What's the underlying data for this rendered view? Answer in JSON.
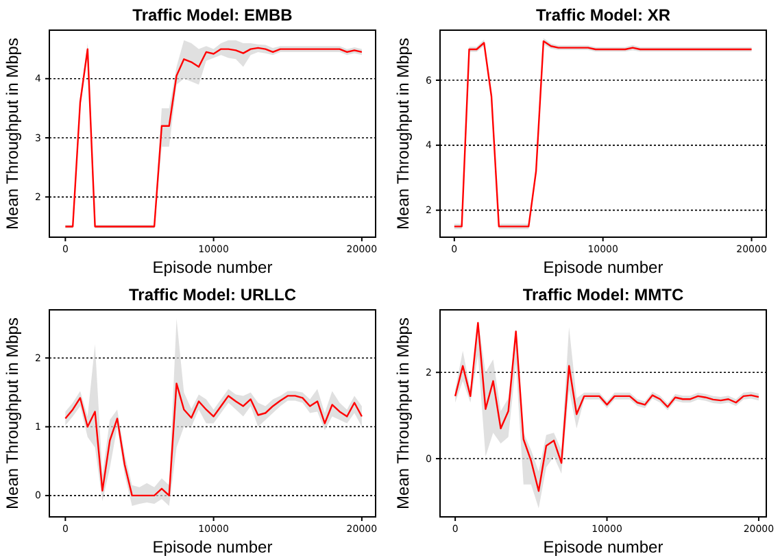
{
  "chart_data": [
    {
      "type": "line",
      "title": "Traffic Model: EMBB",
      "xlabel": "Episode number",
      "ylabel": "Mean Throughput in Mbps",
      "x": [
        0,
        500,
        1000,
        1500,
        2000,
        2500,
        3000,
        3500,
        4000,
        4500,
        5000,
        5500,
        6000,
        6500,
        7000,
        7500,
        8000,
        8500,
        9000,
        9500,
        10000,
        10500,
        11000,
        11500,
        12000,
        12500,
        13000,
        13500,
        14000,
        14500,
        15000,
        15500,
        16000,
        16500,
        17000,
        17500,
        18000,
        18500,
        19000,
        19500,
        20000
      ],
      "series": [
        {
          "color": "#ff0000",
          "values": [
            1.5,
            1.5,
            3.6,
            4.5,
            1.5,
            1.5,
            1.5,
            1.5,
            1.5,
            1.5,
            1.5,
            1.5,
            1.5,
            3.2,
            3.2,
            4.05,
            4.33,
            4.28,
            4.2,
            4.45,
            4.42,
            4.5,
            4.5,
            4.48,
            4.43,
            4.5,
            4.52,
            4.5,
            4.45,
            4.5,
            4.5,
            4.5,
            4.5,
            4.5,
            4.5,
            4.5,
            4.5,
            4.5,
            4.45,
            4.48,
            4.45
          ],
          "lower": [
            1.47,
            1.47,
            3.5,
            4.4,
            1.47,
            1.47,
            1.47,
            1.47,
            1.47,
            1.47,
            1.47,
            1.47,
            1.47,
            2.85,
            2.85,
            3.9,
            4.0,
            3.95,
            3.9,
            4.3,
            4.35,
            4.4,
            4.35,
            4.33,
            4.2,
            4.4,
            4.45,
            4.43,
            4.4,
            4.45,
            4.45,
            4.45,
            4.45,
            4.45,
            4.45,
            4.45,
            4.45,
            4.45,
            4.4,
            4.43,
            4.4
          ],
          "upper": [
            1.53,
            1.53,
            3.7,
            4.6,
            1.53,
            1.53,
            1.53,
            1.53,
            1.53,
            1.53,
            1.53,
            1.53,
            1.53,
            3.5,
            3.5,
            4.2,
            4.65,
            4.6,
            4.5,
            4.55,
            4.5,
            4.6,
            4.65,
            4.65,
            4.6,
            4.6,
            4.58,
            4.57,
            4.52,
            4.55,
            4.55,
            4.55,
            4.55,
            4.55,
            4.55,
            4.55,
            4.55,
            4.55,
            4.5,
            4.53,
            4.5
          ]
        }
      ],
      "xlim": [
        -1080,
        20930
      ],
      "ylim": [
        1.32,
        4.82
      ],
      "xticks": [
        0,
        10000,
        20000
      ],
      "yticks": [
        2,
        3,
        4
      ],
      "grid": "y"
    },
    {
      "type": "line",
      "title": "Traffic Model: XR",
      "xlabel": "Episode number",
      "ylabel": "Mean Throughput in Mbps",
      "x": [
        0,
        500,
        1000,
        1500,
        2000,
        2500,
        3000,
        3500,
        4000,
        4500,
        5000,
        5500,
        6000,
        6500,
        7000,
        7500,
        8000,
        8500,
        9000,
        9500,
        10000,
        10500,
        11000,
        11500,
        12000,
        12500,
        13000,
        13500,
        14000,
        14500,
        15000,
        15500,
        16000,
        16500,
        17000,
        17500,
        18000,
        18500,
        19000,
        19500,
        20000
      ],
      "series": [
        {
          "color": "#ff0000",
          "values": [
            1.5,
            1.5,
            6.95,
            6.95,
            7.15,
            5.5,
            1.5,
            1.5,
            1.5,
            1.5,
            1.5,
            3.2,
            7.2,
            7.05,
            7.0,
            7.0,
            7.0,
            7.0,
            7.0,
            6.95,
            6.95,
            6.95,
            6.95,
            6.95,
            7.0,
            6.95,
            6.95,
            6.95,
            6.95,
            6.95,
            6.95,
            6.95,
            6.95,
            6.95,
            6.95,
            6.95,
            6.95,
            6.95,
            6.95,
            6.95,
            6.95
          ],
          "lower": [
            1.42,
            1.42,
            6.87,
            6.87,
            7.05,
            5.4,
            1.42,
            1.42,
            1.42,
            1.42,
            1.42,
            3.1,
            7.1,
            6.97,
            6.93,
            6.93,
            6.93,
            6.93,
            6.93,
            6.88,
            6.88,
            6.88,
            6.88,
            6.88,
            6.92,
            6.88,
            6.88,
            6.88,
            6.88,
            6.88,
            6.88,
            6.88,
            6.88,
            6.88,
            6.88,
            6.88,
            6.88,
            6.88,
            6.88,
            6.88,
            6.88
          ],
          "upper": [
            1.58,
            1.58,
            7.03,
            7.03,
            7.25,
            5.6,
            1.58,
            1.58,
            1.58,
            1.58,
            1.58,
            3.3,
            7.3,
            7.13,
            7.07,
            7.07,
            7.07,
            7.07,
            7.07,
            7.02,
            7.02,
            7.02,
            7.02,
            7.02,
            7.08,
            7.02,
            7.02,
            7.02,
            7.02,
            7.02,
            7.02,
            7.02,
            7.02,
            7.02,
            7.02,
            7.02,
            7.02,
            7.02,
            7.02,
            7.02,
            7.02
          ]
        }
      ],
      "xlim": [
        -960,
        20990
      ],
      "ylim": [
        1.17,
        7.54
      ],
      "xticks": [
        0,
        10000,
        20000
      ],
      "yticks": [
        2,
        4,
        6
      ],
      "grid": "y"
    },
    {
      "type": "line",
      "title": "Traffic Model: URLLC",
      "xlabel": "Episode number",
      "ylabel": "Mean Throughput in Mbps",
      "x": [
        0,
        500,
        1000,
        1500,
        2000,
        2500,
        3000,
        3500,
        4000,
        4500,
        5000,
        5500,
        6000,
        6500,
        7000,
        7500,
        8000,
        8500,
        9000,
        9500,
        10000,
        10500,
        11000,
        11500,
        12000,
        12500,
        13000,
        13500,
        14000,
        14500,
        15000,
        15500,
        16000,
        16500,
        17000,
        17500,
        18000,
        18500,
        19000,
        19500,
        20000
      ],
      "series": [
        {
          "color": "#ff0000",
          "values": [
            1.12,
            1.25,
            1.42,
            1.0,
            1.22,
            0.07,
            0.8,
            1.12,
            0.45,
            0,
            0,
            0,
            0,
            0.1,
            0,
            1.63,
            1.25,
            1.13,
            1.37,
            1.25,
            1.15,
            1.3,
            1.45,
            1.37,
            1.3,
            1.4,
            1.17,
            1.2,
            1.3,
            1.38,
            1.45,
            1.45,
            1.42,
            1.3,
            1.37,
            1.05,
            1.32,
            1.22,
            1.15,
            1.35,
            1.15
          ],
          "lower": [
            1.02,
            1.15,
            1.3,
            0.85,
            0.7,
            -0.08,
            0.4,
            1.0,
            0.3,
            -0.15,
            -0.12,
            -0.1,
            -0.12,
            -0.05,
            -0.15,
            0.7,
            1.0,
            1.0,
            1.25,
            1.05,
            1.05,
            1.2,
            1.35,
            1.25,
            1.15,
            1.3,
            1.0,
            1.1,
            1.2,
            1.3,
            1.38,
            1.38,
            1.35,
            1.2,
            1.22,
            0.95,
            1.15,
            1.1,
            1.05,
            1.2,
            1.0
          ],
          "upper": [
            1.22,
            1.35,
            1.52,
            1.15,
            2.2,
            0.3,
            1.1,
            1.25,
            0.6,
            0.15,
            0.12,
            0.18,
            0.12,
            0.25,
            0.15,
            2.57,
            1.5,
            1.26,
            1.47,
            1.4,
            1.25,
            1.4,
            1.55,
            1.47,
            1.45,
            1.5,
            1.35,
            1.3,
            1.4,
            1.45,
            1.52,
            1.52,
            1.5,
            1.4,
            1.55,
            1.2,
            1.52,
            1.35,
            1.25,
            1.45,
            1.3
          ]
        }
      ],
      "xlim": [
        -1080,
        20930
      ],
      "ylim": [
        -0.31,
        2.7
      ],
      "xticks": [
        0,
        10000,
        20000
      ],
      "yticks": [
        0,
        1,
        2
      ],
      "grid": "y"
    },
    {
      "type": "line",
      "title": "Traffic Model: MMTC",
      "xlabel": "Episode number",
      "ylabel": "Mean Throughput in Mbps",
      "x": [
        0,
        500,
        1000,
        1500,
        2000,
        2500,
        3000,
        3500,
        4000,
        4500,
        5000,
        5500,
        6000,
        6500,
        7000,
        7500,
        8000,
        8500,
        9000,
        9500,
        10000,
        10500,
        11000,
        11500,
        12000,
        12500,
        13000,
        13500,
        14000,
        14500,
        15000,
        15500,
        16000,
        16500,
        17000,
        17500,
        18000,
        18500,
        19000,
        19500,
        20000
      ],
      "series": [
        {
          "color": "#ff0000",
          "values": [
            1.45,
            2.15,
            1.45,
            3.15,
            1.15,
            1.8,
            0.7,
            1.1,
            2.95,
            0.45,
            -0.05,
            -0.75,
            0.3,
            0.42,
            -0.1,
            2.15,
            1.03,
            1.45,
            1.45,
            1.45,
            1.25,
            1.45,
            1.45,
            1.45,
            1.3,
            1.25,
            1.47,
            1.38,
            1.2,
            1.42,
            1.38,
            1.38,
            1.45,
            1.42,
            1.37,
            1.35,
            1.38,
            1.3,
            1.45,
            1.47,
            1.43
          ],
          "lower": [
            1.3,
            1.8,
            1.3,
            2.4,
            0.05,
            0.6,
            0.35,
            0.5,
            2.2,
            -0.6,
            -0.6,
            -1.15,
            -0.2,
            0.05,
            -0.35,
            1.6,
            0.7,
            1.37,
            1.37,
            1.37,
            1.17,
            1.37,
            1.37,
            1.37,
            1.22,
            1.17,
            1.39,
            1.3,
            1.12,
            1.34,
            1.3,
            1.3,
            1.37,
            1.34,
            1.29,
            1.27,
            1.3,
            1.22,
            1.37,
            1.39,
            1.35
          ],
          "upper": [
            1.6,
            2.5,
            1.6,
            3.2,
            2.0,
            2.3,
            1.1,
            1.4,
            3.0,
            0.6,
            0.2,
            -0.3,
            0.55,
            0.6,
            0.2,
            3.05,
            1.4,
            1.53,
            1.53,
            1.53,
            1.33,
            1.53,
            1.53,
            1.53,
            1.38,
            1.33,
            1.55,
            1.46,
            1.28,
            1.5,
            1.46,
            1.46,
            1.53,
            1.5,
            1.45,
            1.43,
            1.46,
            1.38,
            1.53,
            1.55,
            1.51
          ]
        }
      ],
      "xlim": [
        -1000,
        20500
      ],
      "ylim": [
        -1.35,
        3.45
      ],
      "xticks": [
        0,
        10000,
        20000
      ],
      "yticks": [
        0,
        2
      ],
      "grid": "y"
    }
  ]
}
